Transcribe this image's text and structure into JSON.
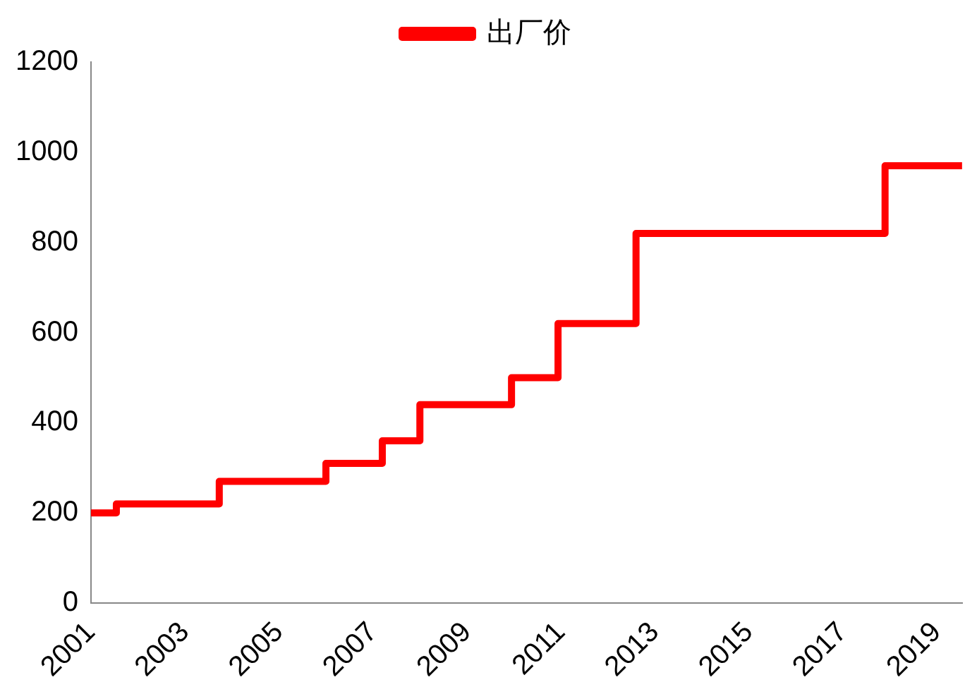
{
  "chart_data": {
    "type": "step",
    "x": [
      2001,
      2001.54,
      2003.73,
      2006,
      2007.2,
      2008,
      2009.95,
      2010.94,
      2012.6,
      2017.9,
      2019.54
    ],
    "series": [
      {
        "name": "出厂价",
        "color": "#ff0000",
        "values": [
          200,
          220,
          270,
          310,
          360,
          440,
          500,
          620,
          820,
          970,
          970
        ]
      }
    ],
    "xlim": [
      2001,
      2019.54
    ],
    "xticks": [
      2001,
      2003,
      2005,
      2007,
      2009,
      2011,
      2013,
      2015,
      2017,
      2019
    ],
    "ylim": [
      0,
      1200
    ],
    "yticks": [
      0,
      200,
      400,
      600,
      800,
      1000,
      1200
    ],
    "grid": false,
    "legend": "top",
    "marker": "none",
    "line_style": "solid"
  }
}
